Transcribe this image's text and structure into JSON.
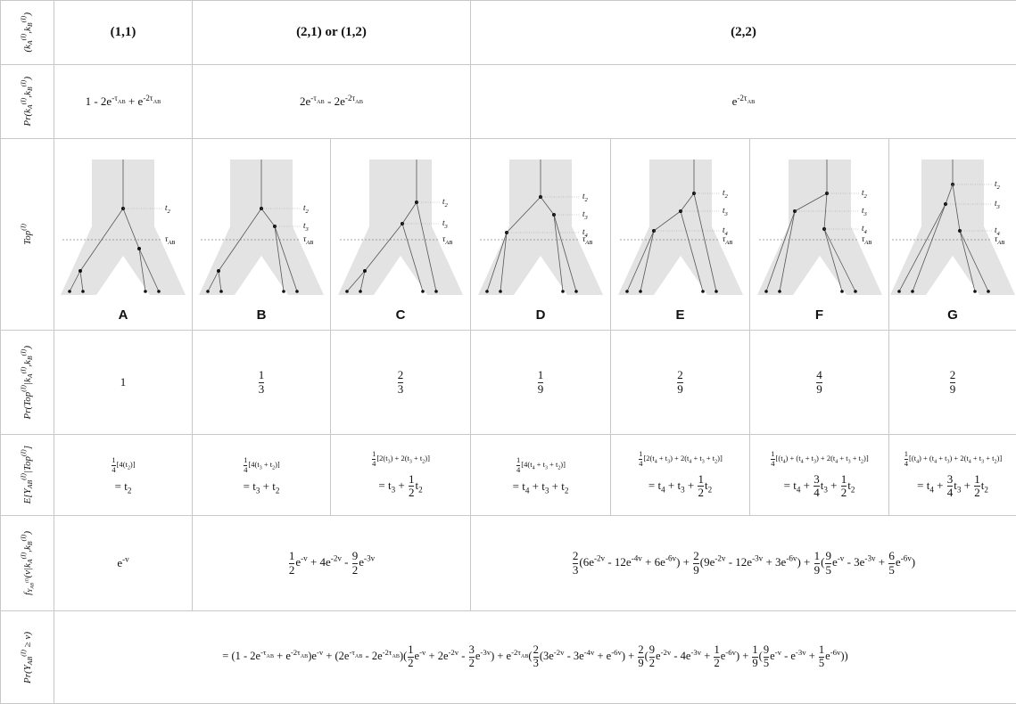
{
  "row_headers": [
    "(k_A^{(I)},k_B^{(I)})",
    "Pr(k_A^{(I)},k_B^{(I)})",
    "Top^{(I)}",
    "Pr(Top^{(I)}|k_A^{(I)},k_B^{(I)})",
    "E[Y_{AB}^{(I)}|Top^{(I)}]",
    "f_{Y_{AB}^{(I)}}(v|k_A^{(I)},k_B^{(I)})",
    "Pr(Y_{AB}^{(I)} ≥ v)"
  ],
  "k_values": [
    "(1,1)",
    "(2,1) or (1,2)",
    "(2,2)"
  ],
  "pr_k": [
    "1 - 2e^{-τ_{AB}} + e^{-2τ_{AB}}",
    "2e^{-τ_{AB}} - 2e^{-2τ_{AB}}",
    "e^{-2τ_{AB}}"
  ],
  "trees": [
    {
      "label": "A",
      "time_labels": [
        "t_2",
        "τ_{AB}"
      ]
    },
    {
      "label": "B",
      "time_labels": [
        "t_2",
        "t_3",
        "τ_{AB}"
      ]
    },
    {
      "label": "C",
      "time_labels": [
        "t_2",
        "t_3",
        "τ_{AB}"
      ]
    },
    {
      "label": "D",
      "time_labels": [
        "t_2",
        "t_3",
        "t_4",
        "τ_{AB}"
      ]
    },
    {
      "label": "E",
      "time_labels": [
        "t_2",
        "t_3",
        "t_4",
        "τ_{AB}"
      ]
    },
    {
      "label": "F",
      "time_labels": [
        "t_2",
        "t_3",
        "t_4",
        "τ_{AB}"
      ]
    },
    {
      "label": "G",
      "time_labels": [
        "t_2",
        "t_3",
        "t_4",
        "τ_{AB}"
      ]
    }
  ],
  "pr_top": [
    "1",
    "\\frac{1}{3}",
    "\\frac{2}{3}",
    "\\frac{1}{9}",
    "\\frac{2}{9}",
    "\\frac{4}{9}",
    "\\frac{2}{9}"
  ],
  "expectation": [
    {
      "sum": "\\frac{1}{4}[4(t_2)]",
      "result": "= t_2"
    },
    {
      "sum": "\\frac{1}{4}[4(t_3 + t_2)]",
      "result": "= t_3 + t_2"
    },
    {
      "sum": "\\frac{1}{4}[2(t_3) + 2(t_3 + t_2)]",
      "result": "= t_3 + \\frac{1}{2}t_2"
    },
    {
      "sum": "\\frac{1}{4}[4(t_4 + t_3 + t_2)]",
      "result": "= t_4 + t_3 + t_2"
    },
    {
      "sum": "\\frac{1}{4}[2(t_4 + t_3) + 2(t_4 + t_3 + t_2)]",
      "result": "= t_4 + t_3 + \\frac{1}{2}t_2"
    },
    {
      "sum": "\\frac{1}{4}[(t_4) + (t_4 + t_3) + 2(t_4 + t_3 + t_2)]",
      "result": "= t_4 + \\frac{3}{4}t_3 + \\frac{1}{2}t_2"
    },
    {
      "sum": "\\frac{1}{4}[(t_4) + (t_4 + t_3) + 2(t_4 + t_3 + t_2)]",
      "result": "= t_4 + \\frac{3}{4}t_3 + \\frac{1}{2}t_2"
    }
  ],
  "density": [
    "e^{-v}",
    "\\frac{1}{2}e^{-v} + 4e^{-2v} - \\frac{9}{2}e^{-3v}",
    "\\frac{2}{3}(6e^{-2v} - 12e^{-4v} + 6e^{-6v}) + \\frac{2}{9}(9e^{-2v} - 12e^{-3v} + 3e^{-6v}) + \\frac{1}{9}(\\frac{9}{5}e^{-v} - 3e^{-3v} + \\frac{6}{5}e^{-6v})"
  ],
  "survival": "= (1 - 2e^{-τ_{AB}} + e^{-2τ_{AB}})e^{-v} + (2e^{-τ_{AB}} - 2e^{-2τ_{AB}})(\\frac{1}{2}e^{-v} + 2e^{-2v} - \\frac{3}{2}e^{-3v}) + e^{-2τ_{AB}}(\\frac{2}{3}(3e^{-2v} - 3e^{-4v} + e^{-6v}) + \\frac{2}{9}(\\frac{9}{2}e^{-2v} - 4e^{-3v} + \\frac{1}{2}e^{-6v}) + \\frac{1}{9}(\\frac{9}{5}e^{-v} - e^{-3v} + \\frac{1}{5}e^{-6v}))"
}
